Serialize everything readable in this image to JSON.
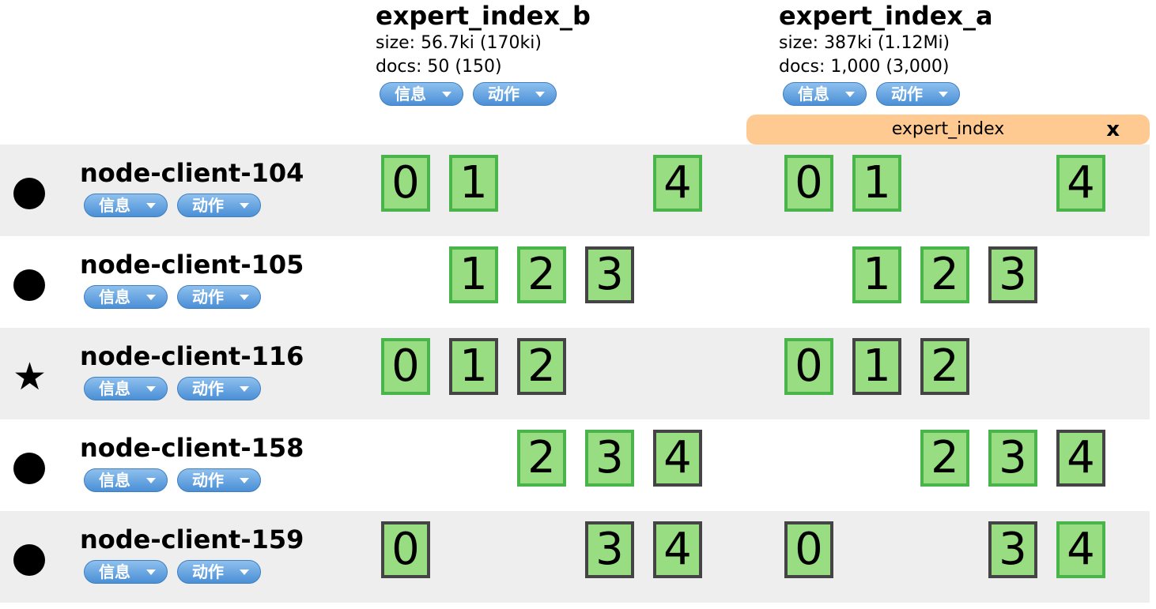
{
  "indices": [
    {
      "name": "expert_index_b",
      "size": "size: 56.7ki (170ki)",
      "docs": "docs: 50 (150)",
      "info_label": "信息",
      "action_label": "动作"
    },
    {
      "name": "expert_index_a",
      "size": "size: 387ki (1.12Mi)",
      "docs": "docs: 1,000 (3,000)",
      "info_label": "信息",
      "action_label": "动作"
    }
  ],
  "alias": {
    "name": "expert_index",
    "close": "x"
  },
  "nodes": [
    {
      "name": "node-client-104",
      "status_icon": "dot-icon",
      "info_label": "信息",
      "action_label": "动作",
      "shards_b": [
        {
          "n": "0",
          "primary": true
        },
        {
          "n": "1",
          "primary": true
        },
        {
          "n": "4",
          "primary": true
        }
      ],
      "shards_a": [
        {
          "n": "0",
          "primary": true
        },
        {
          "n": "1",
          "primary": true
        },
        {
          "n": "4",
          "primary": true
        }
      ]
    },
    {
      "name": "node-client-105",
      "status_icon": "dot-icon",
      "info_label": "信息",
      "action_label": "动作",
      "shards_b": [
        {
          "n": "1",
          "primary": true
        },
        {
          "n": "2",
          "primary": true
        },
        {
          "n": "3",
          "primary": false
        }
      ],
      "shards_a": [
        {
          "n": "1",
          "primary": true
        },
        {
          "n": "2",
          "primary": true
        },
        {
          "n": "3",
          "primary": false
        }
      ]
    },
    {
      "name": "node-client-116",
      "status_icon": "star-icon",
      "info_label": "信息",
      "action_label": "动作",
      "shards_b": [
        {
          "n": "0",
          "primary": true
        },
        {
          "n": "1",
          "primary": false
        },
        {
          "n": "2",
          "primary": false
        }
      ],
      "shards_a": [
        {
          "n": "0",
          "primary": true
        },
        {
          "n": "1",
          "primary": false
        },
        {
          "n": "2",
          "primary": false
        }
      ]
    },
    {
      "name": "node-client-158",
      "status_icon": "dot-icon",
      "info_label": "信息",
      "action_label": "动作",
      "shards_b": [
        {
          "n": "2",
          "primary": true
        },
        {
          "n": "3",
          "primary": true
        },
        {
          "n": "4",
          "primary": false
        }
      ],
      "shards_a": [
        {
          "n": "2",
          "primary": true
        },
        {
          "n": "3",
          "primary": true
        },
        {
          "n": "4",
          "primary": false
        }
      ]
    },
    {
      "name": "node-client-159",
      "status_icon": "dot-icon",
      "info_label": "信息",
      "action_label": "动作",
      "shards_b": [
        {
          "n": "0",
          "primary": false
        },
        {
          "n": "3",
          "primary": false
        },
        {
          "n": "4",
          "primary": false
        }
      ],
      "shards_a": [
        {
          "n": "0",
          "primary": false
        },
        {
          "n": "3",
          "primary": false
        },
        {
          "n": "4",
          "primary": true
        }
      ]
    }
  ]
}
